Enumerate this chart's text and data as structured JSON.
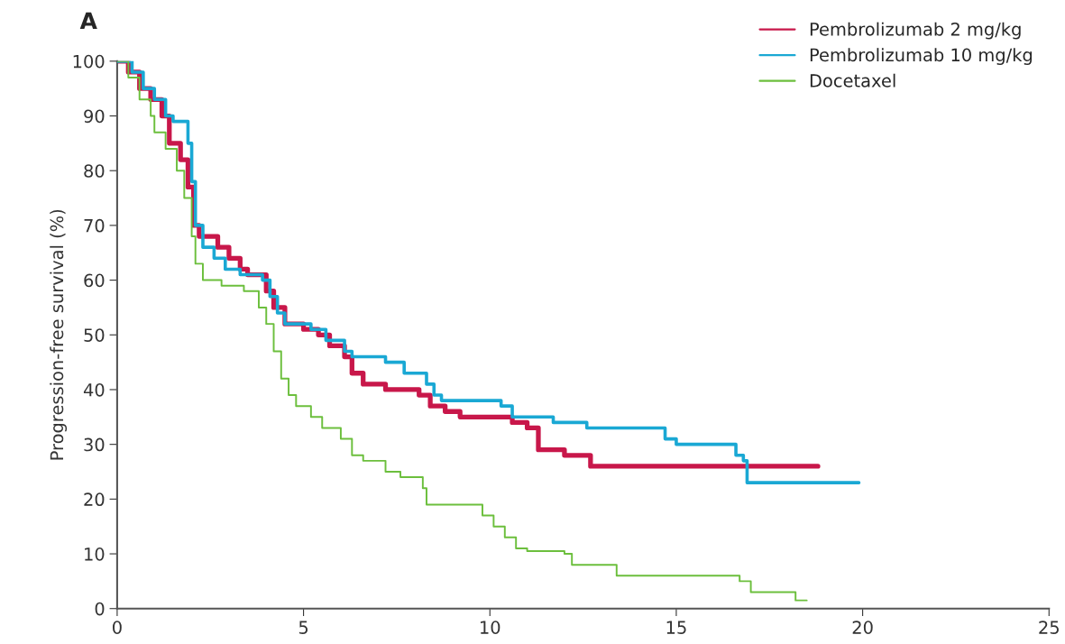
{
  "chart_data": {
    "type": "step",
    "title": "A",
    "ylabel": "Progression-free survival (%)",
    "xlim": [
      0,
      25
    ],
    "xticks": [
      0,
      5,
      10,
      15,
      20,
      25
    ],
    "ylim": [
      0,
      100
    ],
    "yticks": [
      0,
      10,
      20,
      30,
      40,
      50,
      60,
      70,
      80,
      90,
      100
    ],
    "grid": false,
    "legend": "top right",
    "line_style": "solid",
    "marker": "none",
    "series": [
      {
        "name": "Pembrolizumab 2 mg/kg",
        "color": "#c8174a",
        "x": [
          0,
          0.3,
          0.6,
          0.9,
          1.2,
          1.4,
          1.7,
          1.9,
          2.05,
          2.2,
          2.7,
          3.0,
          3.3,
          3.5,
          4.0,
          4.2,
          4.5,
          5.0,
          5.4,
          5.7,
          6.1,
          6.3,
          6.6,
          7.2,
          8.1,
          8.4,
          8.8,
          9.2,
          10.6,
          11.0,
          11.3,
          12.0,
          12.7,
          18.8
        ],
        "values": [
          100,
          98,
          95,
          93,
          90,
          85,
          82,
          77,
          70,
          68,
          66,
          64,
          62,
          61,
          58,
          55,
          52,
          51,
          50,
          48,
          46,
          43,
          41,
          40,
          39,
          37,
          36,
          35,
          34,
          33,
          29,
          28,
          26,
          26
        ]
      },
      {
        "name": "Pembrolizumab 10 mg/kg",
        "color": "#1aa8d4",
        "x": [
          0,
          0.4,
          0.7,
          1.0,
          1.3,
          1.5,
          1.9,
          2.0,
          2.1,
          2.3,
          2.6,
          2.9,
          3.3,
          3.9,
          4.1,
          4.3,
          4.5,
          5.2,
          5.6,
          6.1,
          6.3,
          7.2,
          7.7,
          8.3,
          8.5,
          8.7,
          10.3,
          10.6,
          11.7,
          12.6,
          14.7,
          15.0,
          16.6,
          16.8,
          16.9,
          19.9
        ],
        "values": [
          100,
          98,
          95,
          93,
          90,
          89,
          85,
          78,
          70,
          66,
          64,
          62,
          61,
          60,
          57,
          54,
          52,
          51,
          49,
          47,
          46,
          45,
          43,
          41,
          39,
          38,
          37,
          35,
          34,
          33,
          31,
          30,
          28,
          27,
          23,
          23
        ]
      },
      {
        "name": "Docetaxel",
        "color": "#6cbf3d",
        "x": [
          0,
          0.3,
          0.6,
          0.9,
          1.0,
          1.3,
          1.6,
          1.8,
          2.0,
          2.1,
          2.3,
          2.8,
          3.4,
          3.8,
          4.0,
          4.2,
          4.4,
          4.6,
          4.8,
          5.2,
          5.5,
          6.0,
          6.3,
          6.6,
          7.2,
          7.6,
          8.2,
          8.3,
          9.8,
          10.1,
          10.4,
          10.7,
          11.0,
          12.0,
          12.2,
          13.4,
          16.6,
          16.7,
          17.0,
          18.1,
          18.2,
          18.5
        ],
        "values": [
          100,
          97,
          93,
          90,
          87,
          84,
          80,
          75,
          68,
          63,
          60,
          59,
          58,
          55,
          52,
          47,
          42,
          39,
          37,
          35,
          33,
          31,
          28,
          27,
          25,
          24,
          22,
          19,
          17,
          15,
          13,
          11,
          10.5,
          10,
          8,
          6,
          6,
          5,
          3,
          3,
          1.5,
          1.5
        ]
      }
    ]
  }
}
